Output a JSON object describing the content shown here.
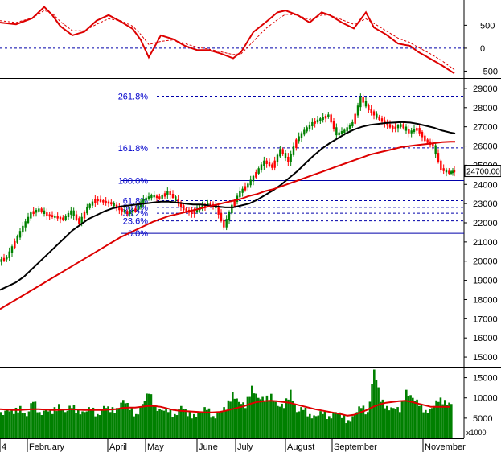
{
  "colors": {
    "background": "#ffffff",
    "price_up": "#008000",
    "price_down": "#ff0000",
    "ma_slow": "#dd0000",
    "ma_fast": "#000000",
    "fib_line": "#0000aa",
    "fib_label": "#0000cc",
    "oscillator": "#dd0000",
    "oscillator_signal": "#dd0000",
    "volume_bar": "#008000",
    "volume_ma": "#dd0000",
    "price_tag_bg": "#ffffff",
    "grid_dash": "#0000aa"
  },
  "chart_data": [
    {
      "type": "line",
      "panel": "oscillator",
      "ylim": [
        -650,
        1050
      ],
      "y_ticks": [
        "500",
        "0",
        "-500"
      ],
      "y_tick_values": [
        500,
        0,
        -500
      ],
      "zero_line": 0,
      "x": [
        0,
        20,
        40,
        55,
        65,
        75,
        90,
        105,
        120,
        135,
        150,
        165,
        175,
        185,
        200,
        215,
        230,
        245,
        260,
        275,
        290,
        300,
        315,
        330,
        345,
        355,
        370,
        385,
        400,
        410,
        425,
        440,
        455,
        465,
        480,
        495,
        510,
        520,
        535,
        550,
        565
      ],
      "series": [
        {
          "values": [
            560,
            520,
            650,
            900,
            720,
            480,
            280,
            360,
            600,
            720,
            580,
            420,
            180,
            -200,
            280,
            200,
            50,
            -40,
            -40,
            -120,
            -220,
            -80,
            350,
            560,
            780,
            820,
            720,
            560,
            780,
            720,
            560,
            430,
            780,
            450,
            300,
            100,
            50,
            -80,
            -230,
            -380,
            -550
          ]
        },
        {
          "values": [
            600,
            560,
            660,
            820,
            760,
            580,
            380,
            380,
            520,
            640,
            600,
            480,
            300,
            80,
            150,
            180,
            100,
            20,
            -20,
            -80,
            -140,
            -120,
            150,
            420,
            620,
            740,
            720,
            620,
            720,
            720,
            620,
            520,
            640,
            540,
            380,
            220,
            120,
            20,
            -120,
            -280,
            -470
          ]
        }
      ]
    },
    {
      "type": "line",
      "panel": "price",
      "ylim": [
        14500,
        29500
      ],
      "y_ticks": [
        "29000",
        "28000",
        "27000",
        "26000",
        "25000",
        "24000",
        "23000",
        "22000",
        "21000",
        "20000",
        "19000",
        "18000",
        "17000",
        "16000",
        "15000"
      ],
      "y_tick_values": [
        29000,
        28000,
        27000,
        26000,
        25000,
        24000,
        23000,
        22000,
        21000,
        20000,
        19000,
        18000,
        17000,
        16000,
        15000
      ],
      "last_price_label": "24700.00",
      "last_price": 24700,
      "x_ticks": [
        "4",
        "February",
        "April",
        "May",
        "June",
        "July",
        "August",
        "September",
        "November"
      ],
      "x_tick_values": [
        0,
        34,
        134,
        181,
        245,
        293,
        355,
        413,
        526
      ],
      "x": [
        0,
        10,
        20,
        30,
        40,
        50,
        60,
        70,
        80,
        90,
        100,
        110,
        120,
        130,
        140,
        150,
        160,
        170,
        180,
        190,
        200,
        210,
        220,
        230,
        240,
        250,
        260,
        270,
        280,
        290,
        300,
        310,
        320,
        330,
        340,
        350,
        360,
        370,
        380,
        390,
        400,
        410,
        420,
        430,
        440,
        450,
        460,
        470,
        480,
        490,
        500,
        510,
        520,
        530,
        540,
        550,
        560,
        566
      ],
      "series": [
        {
          "name": "close",
          "values": [
            20000,
            20200,
            21000,
            21800,
            22500,
            22700,
            22400,
            22300,
            22200,
            22600,
            22000,
            22800,
            23200,
            23100,
            23000,
            22700,
            22500,
            22700,
            23200,
            23400,
            23300,
            23600,
            23200,
            22700,
            22500,
            22800,
            23000,
            22800,
            21800,
            22900,
            23600,
            24000,
            24600,
            25200,
            24900,
            25800,
            25200,
            26300,
            26800,
            27200,
            27400,
            27600,
            26600,
            26800,
            27200,
            28500,
            27900,
            27500,
            27200,
            26900,
            27100,
            26700,
            26900,
            26300,
            26000,
            24800,
            24600,
            24700
          ]
        },
        {
          "name": "ma_fast",
          "values": [
            18500,
            18700,
            18900,
            19200,
            19600,
            20000,
            20400,
            20800,
            21200,
            21600,
            21900,
            22200,
            22400,
            22600,
            22750,
            22850,
            22900,
            22950,
            23000,
            23050,
            23100,
            23100,
            23050,
            23000,
            22950,
            22950,
            22900,
            22850,
            22800,
            22800,
            22900,
            23000,
            23200,
            23450,
            23700,
            24000,
            24350,
            24700,
            25100,
            25500,
            25850,
            26150,
            26400,
            26650,
            26850,
            27000,
            27100,
            27150,
            27200,
            27220,
            27250,
            27220,
            27150,
            27050,
            26950,
            26800,
            26700,
            26650
          ]
        },
        {
          "name": "ma_slow",
          "values": [
            17500,
            17750,
            18000,
            18250,
            18500,
            18750,
            19000,
            19250,
            19500,
            19750,
            20000,
            20250,
            20500,
            20750,
            21000,
            21250,
            21450,
            21650,
            21850,
            22050,
            22200,
            22350,
            22450,
            22550,
            22650,
            22750,
            22850,
            22950,
            23050,
            23150,
            23250,
            23400,
            23500,
            23650,
            23750,
            23900,
            24050,
            24200,
            24350,
            24500,
            24650,
            24800,
            24950,
            25100,
            25250,
            25400,
            25550,
            25650,
            25750,
            25850,
            25950,
            26000,
            26050,
            26100,
            26150,
            26200,
            26220,
            26220
          ]
        }
      ],
      "fib_levels": [
        {
          "label": "261.8%",
          "value": 28600,
          "style": "dashed"
        },
        {
          "label": "161.8%",
          "value": 25900,
          "style": "dashed"
        },
        {
          "label": "100.0%",
          "value": 24200,
          "style": "solid"
        },
        {
          "label": "61.8%",
          "value": 23150,
          "style": "dashed"
        },
        {
          "label": "50.0%",
          "value": 22800,
          "style": "dashed"
        },
        {
          "label": "38.2%",
          "value": 22500,
          "style": "dashed"
        },
        {
          "label": "23.6%",
          "value": 22100,
          "style": "dashed"
        },
        {
          "label": "0.0%",
          "value": 21450,
          "style": "solid"
        }
      ]
    },
    {
      "type": "bar",
      "panel": "volume",
      "ylim": [
        0,
        17500
      ],
      "y_ticks": [
        "15000",
        "10000",
        "5000"
      ],
      "y_tick_values": [
        15000,
        10000,
        5000
      ],
      "unit_label": "x1000",
      "x": [
        0,
        8,
        16,
        24,
        32,
        40,
        48,
        56,
        64,
        72,
        80,
        88,
        96,
        104,
        112,
        120,
        128,
        136,
        144,
        152,
        160,
        168,
        176,
        184,
        192,
        200,
        208,
        216,
        224,
        232,
        240,
        248,
        256,
        264,
        272,
        280,
        288,
        296,
        304,
        312,
        320,
        328,
        336,
        344,
        352,
        360,
        368,
        376,
        384,
        392,
        400,
        408,
        416,
        424,
        432,
        440,
        448,
        456,
        464,
        472,
        480,
        488,
        496,
        504,
        512,
        520,
        528,
        536,
        544,
        552,
        560
      ],
      "values": [
        6500,
        7000,
        6000,
        8000,
        5500,
        9000,
        6500,
        7000,
        6000,
        8500,
        6500,
        7500,
        7000,
        6500,
        7000,
        6000,
        8000,
        6500,
        7500,
        9500,
        7000,
        6000,
        8500,
        11000,
        8000,
        7000,
        6500,
        6000,
        8000,
        5500,
        6000,
        6500,
        7000,
        5500,
        6500,
        7000,
        11500,
        9000,
        7500,
        13000,
        10000,
        9000,
        11000,
        8000,
        7500,
        12000,
        6500,
        7000,
        6000,
        5500,
        6000,
        5500,
        6500,
        5000,
        4500,
        6000,
        7500,
        6500,
        17000,
        9000,
        8000,
        7500,
        6500,
        12000,
        10000,
        8000,
        7000,
        7500,
        9000,
        9500,
        8500
      ],
      "series": [
        {
          "name": "volume_ma",
          "values": [
            7200,
            7100,
            7000,
            7000,
            7100,
            7200,
            7200,
            7100,
            7000,
            7000,
            7100,
            7200,
            7100,
            7000,
            7000,
            7000,
            7000,
            7100,
            7200,
            7500,
            7600,
            7600,
            7800,
            8000,
            8000,
            7800,
            7400,
            7000,
            6800,
            6700,
            6600,
            6500,
            6400,
            6400,
            6500,
            6800,
            7200,
            7600,
            8000,
            8600,
            9000,
            9200,
            9300,
            9200,
            9000,
            8800,
            8400,
            8000,
            7600,
            7200,
            6900,
            6600,
            6300,
            6000,
            5600,
            5800,
            6400,
            7000,
            7800,
            8400,
            8800,
            9000,
            9200,
            9300,
            9000,
            8600,
            8200,
            7800,
            7800,
            7800,
            7800
          ]
        }
      ]
    }
  ]
}
